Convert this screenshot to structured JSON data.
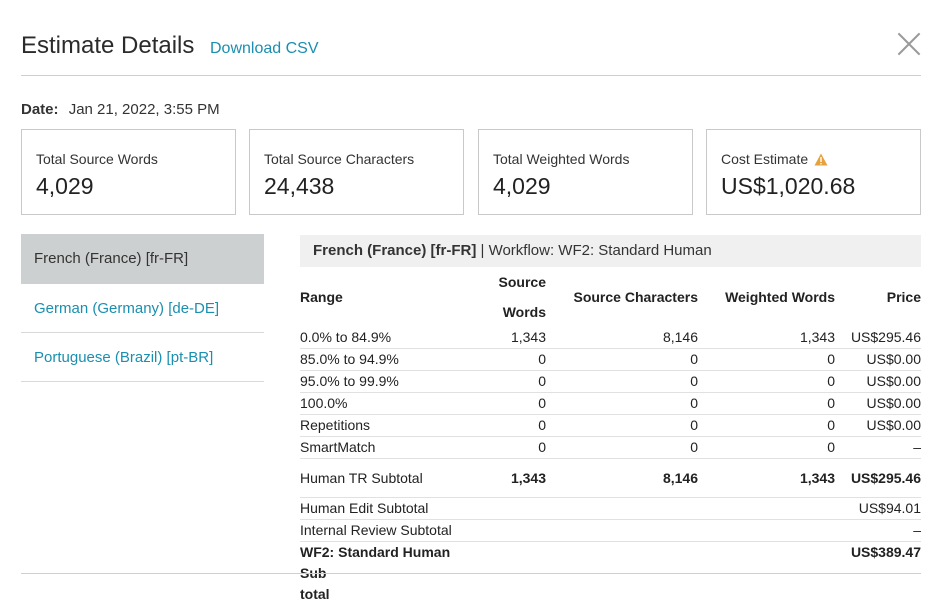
{
  "header": {
    "title": "Estimate Details",
    "download_label": "Download CSV"
  },
  "date": {
    "label": "Date:",
    "value": "Jan 21, 2022, 3:55 PM"
  },
  "cards": [
    {
      "label": "Total Source Words",
      "value": "4,029"
    },
    {
      "label": "Total Source Characters",
      "value": "24,438"
    },
    {
      "label": "Total Weighted Words",
      "value": "4,029"
    },
    {
      "label": "Cost Estimate",
      "value": "US$1,020.68",
      "icon": "warning-icon",
      "icon_color": "#e6a23c"
    }
  ],
  "languages": [
    {
      "label": "French (France) [fr-FR]",
      "active": true
    },
    {
      "label": "German (Germany) [de-DE]",
      "active": false
    },
    {
      "label": "Portuguese (Brazil) [pt-BR]",
      "active": false
    }
  ],
  "detail": {
    "language": "French (France) [fr-FR]",
    "workflow": " | Workflow: WF2: Standard Human",
    "columns": [
      "Range",
      "Source Words",
      "Source Characters",
      "Weighted Words",
      "Price"
    ],
    "rows": [
      [
        "0.0% to 84.9%",
        "1,343",
        "8,146",
        "1,343",
        "US$295.46"
      ],
      [
        "85.0% to 94.9%",
        "0",
        "0",
        "0",
        "US$0.00"
      ],
      [
        "95.0% to 99.9%",
        "0",
        "0",
        "0",
        "US$0.00"
      ],
      [
        "100.0%",
        "0",
        "0",
        "0",
        "US$0.00"
      ],
      [
        "Repetitions",
        "0",
        "0",
        "0",
        "US$0.00"
      ],
      [
        "SmartMatch",
        "0",
        "0",
        "0",
        "–"
      ]
    ],
    "subtotal": [
      "Human TR Subtotal",
      "1,343",
      "8,146",
      "1,343",
      "US$295.46"
    ],
    "extra_rows": [
      [
        "Human Edit Subtotal",
        "US$94.01"
      ],
      [
        "Internal Review Subtotal",
        "–"
      ]
    ],
    "final": {
      "label_line1": "WF2: Standard Human Sub",
      "label_line2": "total",
      "price": "US$389.47"
    }
  },
  "colors": {
    "link": "#1a8fb0",
    "active_bg": "#cdd0d1",
    "header_bg": "#f0f0f0"
  }
}
